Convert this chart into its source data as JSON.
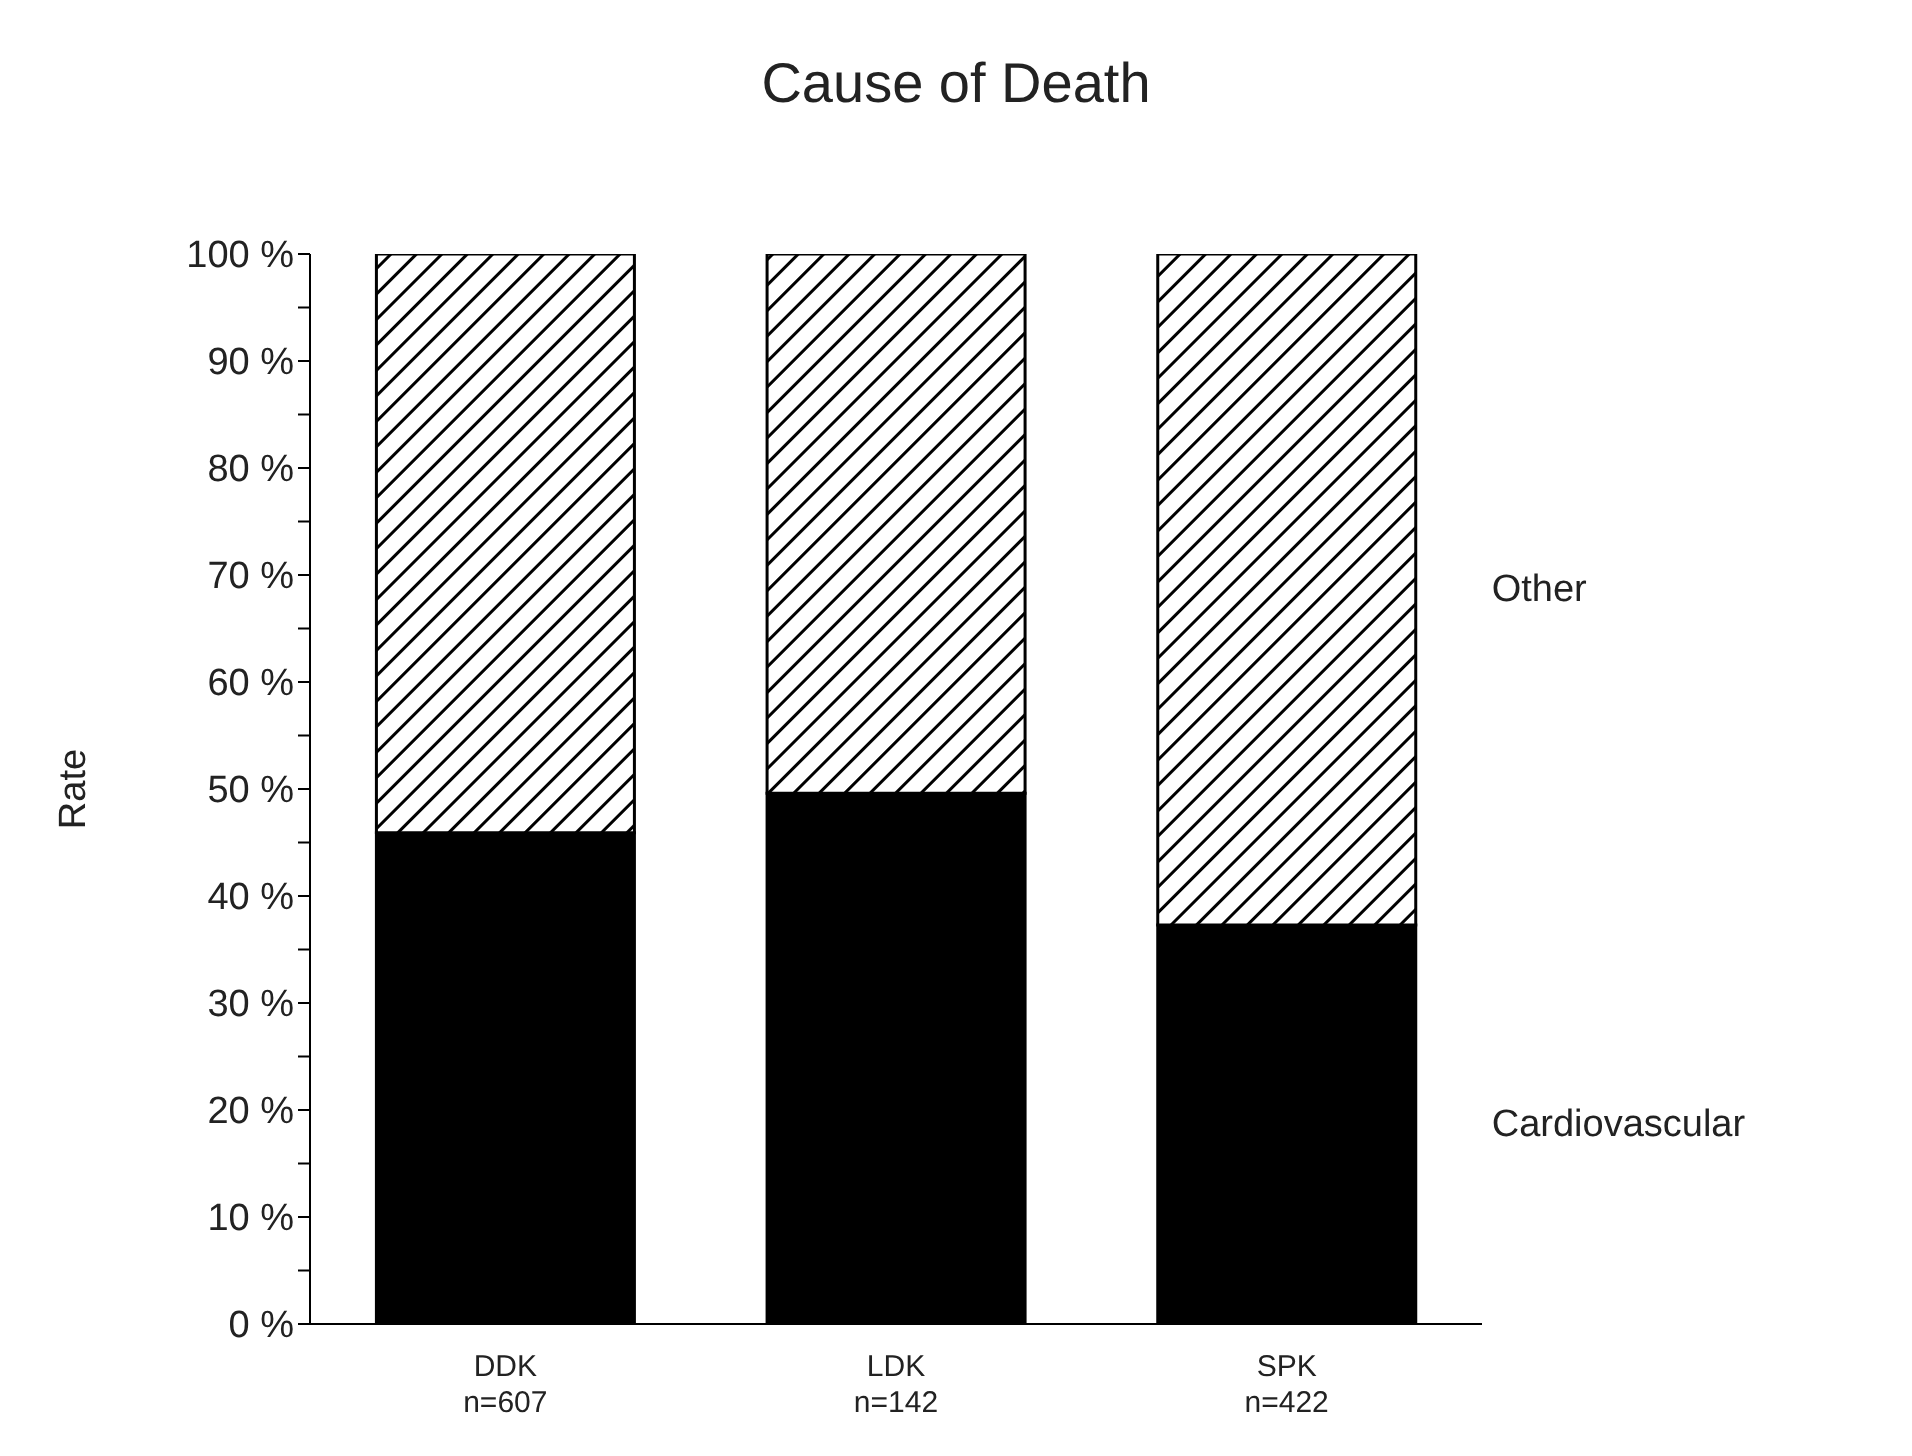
{
  "chart_data": {
    "type": "bar",
    "title": "Cause of Death",
    "ylabel": "Rate",
    "categories": [
      "DDK\nn=607",
      "LDK\nn=142",
      "SPK\nn=422"
    ],
    "series": [
      {
        "name": "Cardiovascular",
        "color": "#000000",
        "values": [
          45.9,
          49.6,
          37.3
        ]
      },
      {
        "name": "Other",
        "color": "#000000",
        "values": [
          54.1,
          50.4,
          62.7
        ]
      }
    ],
    "stacked": true,
    "ylim": [
      0,
      100
    ],
    "yticks": [
      {
        "value": 0,
        "label": "0 %"
      },
      {
        "value": 5,
        "label": null
      },
      {
        "value": 10,
        "label": "10 %"
      },
      {
        "value": 15,
        "label": null
      },
      {
        "value": 20,
        "label": "20 %"
      },
      {
        "value": 25,
        "label": null
      },
      {
        "value": 30,
        "label": "30 %"
      },
      {
        "value": 35,
        "label": null
      },
      {
        "value": 40,
        "label": "40 %"
      },
      {
        "value": 45,
        "label": null
      },
      {
        "value": 50,
        "label": "50 %"
      },
      {
        "value": 55,
        "label": null
      },
      {
        "value": 60,
        "label": "60 %"
      },
      {
        "value": 65,
        "label": null
      },
      {
        "value": 70,
        "label": "70 %"
      },
      {
        "value": 75,
        "label": null
      },
      {
        "value": 80,
        "label": "80 %"
      },
      {
        "value": 85,
        "label": null
      },
      {
        "value": 90,
        "label": "90 %"
      },
      {
        "value": 95,
        "label": null
      },
      {
        "value": 100,
        "label": "100 %"
      }
    ],
    "grid": false,
    "legend": "right"
  }
}
